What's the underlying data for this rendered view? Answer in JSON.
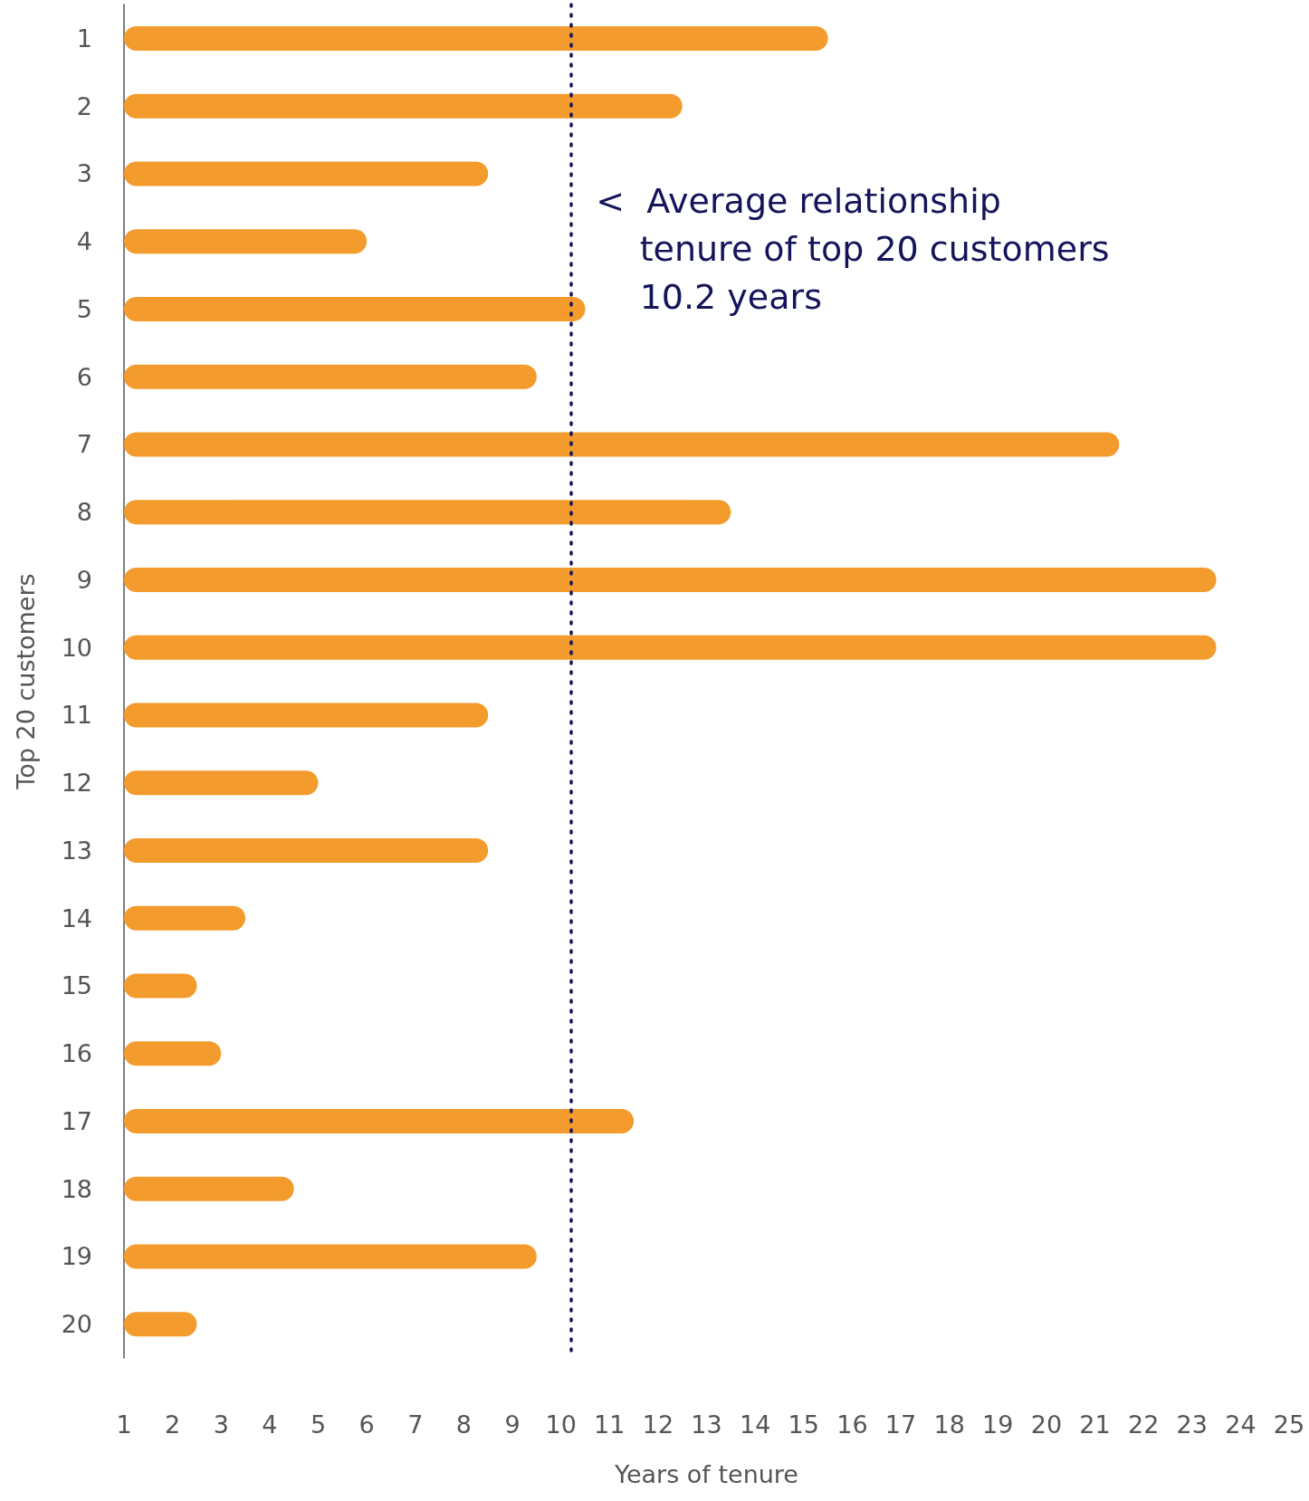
{
  "chart_data": {
    "type": "bar",
    "orientation": "horizontal",
    "xlabel": "Years of tenure",
    "ylabel": "Top 20 customers",
    "categories": [
      "1",
      "2",
      "3",
      "4",
      "5",
      "6",
      "7",
      "8",
      "9",
      "10",
      "11",
      "12",
      "13",
      "14",
      "15",
      "16",
      "17",
      "18",
      "19",
      "20"
    ],
    "series": [
      {
        "color": "#f49b2d",
        "values": [
          15.5,
          12.5,
          8.5,
          6,
          10.5,
          9.5,
          21.5,
          13.5,
          23.5,
          23.5,
          8.5,
          5,
          8.5,
          3.5,
          2.5,
          3,
          11.5,
          4.5,
          9.5,
          2.5
        ]
      }
    ],
    "xlim": [
      1,
      25
    ],
    "xticks": [
      1,
      2,
      3,
      4,
      5,
      6,
      7,
      8,
      9,
      10,
      11,
      12,
      13,
      14,
      15,
      16,
      17,
      18,
      19,
      20,
      21,
      22,
      23,
      24,
      25
    ],
    "ref_lines": [
      {
        "axis": "x",
        "value": 10.2,
        "label": "<  Average relationship\n    tenure of top 20 customers\n    10.2 years",
        "color": "#14145a",
        "line_style": "dotted"
      }
    ],
    "grid": false
  }
}
